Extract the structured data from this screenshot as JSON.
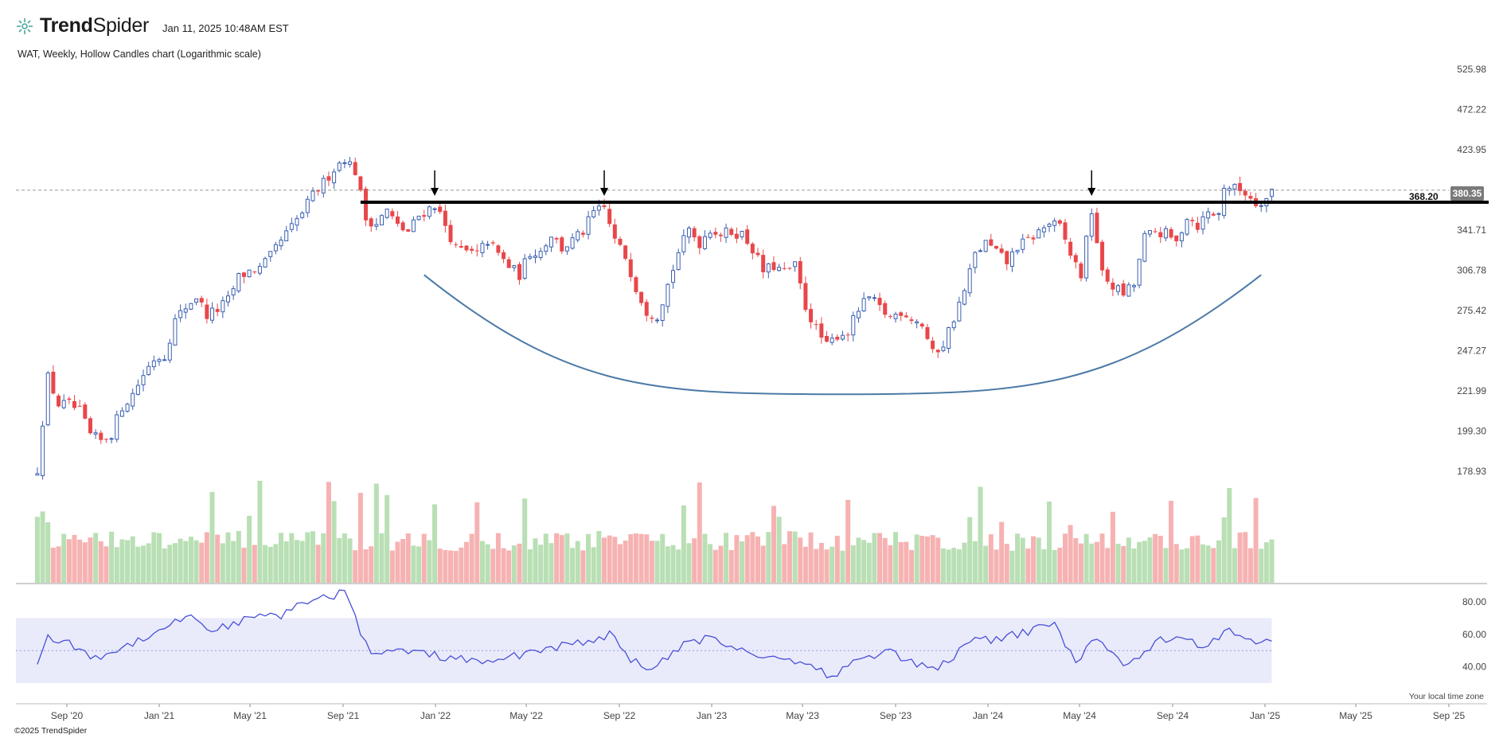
{
  "header": {
    "brand_bold": "Trend",
    "brand_light": "Spider",
    "logo_icon": "trendspider-logo-icon",
    "timestamp": "Jan 11, 2025 10:48AM EST",
    "subtitle": "WAT, Weekly, Hollow Candles chart (Logarithmic scale)"
  },
  "footer": {
    "copyright": "©2025 TrendSpider",
    "timezone": "Your local time zone"
  },
  "colors": {
    "up": "#3b5fb0",
    "down": "#e8474a",
    "vol_up": "#b9dfb4",
    "vol_down": "#f6b2b2",
    "rsi_line": "#4a4fd6",
    "rsi_band": "#e9ebfb",
    "cup_curve": "#4c7aa6",
    "resistance": "#000000"
  },
  "chart_data": [
    {
      "type": "candlestick",
      "ticker": "WAT",
      "interval": "Weekly",
      "style": "Hollow Candles",
      "scale": "log",
      "x_ticks": [
        "Sep '20",
        "Jan '21",
        "May '21",
        "Sep '21",
        "Jan '22",
        "May '22",
        "Sep '22",
        "Jan '23",
        "May '23",
        "Sep '23",
        "Jan '24",
        "May '24",
        "Sep '24",
        "Jan '25",
        "May '25",
        "Sep '25"
      ],
      "y_ticks": [
        178.93,
        199.3,
        221.99,
        247.27,
        275.42,
        306.78,
        341.71,
        380.35,
        423.95,
        472.22,
        525.98
      ],
      "y_tick_labels": [
        "178.93",
        "199.30",
        "221.99",
        "247.27",
        "275.42",
        "306.78",
        "341.71",
        "423.95",
        "472.22",
        "525.98"
      ],
      "last_price": "380.35",
      "resistance_level": 368.2,
      "resistance_label": "368.20",
      "anchor_closes": [
        [
          "2020-07-24",
          180
        ],
        [
          "2020-08-07",
          230
        ],
        [
          "2020-08-21",
          214
        ],
        [
          "2020-09-04",
          214
        ],
        [
          "2020-09-18",
          210
        ],
        [
          "2020-10-02",
          197
        ],
        [
          "2020-10-16",
          194
        ],
        [
          "2020-10-30",
          198
        ],
        [
          "2020-11-13",
          213
        ],
        [
          "2020-11-27",
          220
        ],
        [
          "2020-12-11",
          232
        ],
        [
          "2020-12-25",
          242
        ],
        [
          "2021-01-08",
          244
        ],
        [
          "2021-01-22",
          268
        ],
        [
          "2021-02-05",
          278
        ],
        [
          "2021-02-19",
          286
        ],
        [
          "2021-03-05",
          272
        ],
        [
          "2021-03-19",
          276
        ],
        [
          "2021-04-02",
          283
        ],
        [
          "2021-04-16",
          301
        ],
        [
          "2021-04-30",
          306
        ],
        [
          "2021-05-14",
          308
        ],
        [
          "2021-05-28",
          318
        ],
        [
          "2021-06-11",
          332
        ],
        [
          "2021-06-25",
          344
        ],
        [
          "2021-07-09",
          358
        ],
        [
          "2021-07-23",
          375
        ],
        [
          "2021-08-06",
          388
        ],
        [
          "2021-08-20",
          403
        ],
        [
          "2021-09-03",
          415
        ],
        [
          "2021-09-17",
          400
        ],
        [
          "2021-10-01",
          352
        ],
        [
          "2021-10-15",
          348
        ],
        [
          "2021-10-29",
          360
        ],
        [
          "2021-11-12",
          345
        ],
        [
          "2021-11-26",
          340
        ],
        [
          "2021-12-10",
          355
        ],
        [
          "2021-12-31",
          366
        ],
        [
          "2022-01-14",
          346
        ],
        [
          "2022-01-28",
          325
        ],
        [
          "2022-02-11",
          322
        ],
        [
          "2022-02-25",
          320
        ],
        [
          "2022-03-11",
          332
        ],
        [
          "2022-03-25",
          320
        ],
        [
          "2022-04-08",
          310
        ],
        [
          "2022-04-22",
          303
        ],
        [
          "2022-05-06",
          322
        ],
        [
          "2022-05-20",
          323
        ],
        [
          "2022-06-03",
          338
        ],
        [
          "2022-06-17",
          325
        ],
        [
          "2022-07-01",
          332
        ],
        [
          "2022-07-15",
          340
        ],
        [
          "2022-07-29",
          358
        ],
        [
          "2022-08-12",
          362
        ],
        [
          "2022-08-26",
          332
        ],
        [
          "2022-09-09",
          318
        ],
        [
          "2022-09-23",
          293
        ],
        [
          "2022-10-07",
          275
        ],
        [
          "2022-10-21",
          272
        ],
        [
          "2022-11-04",
          295
        ],
        [
          "2022-11-18",
          322
        ],
        [
          "2022-12-02",
          342
        ],
        [
          "2022-12-16",
          330
        ],
        [
          "2022-12-30",
          343
        ],
        [
          "2023-01-13",
          338
        ],
        [
          "2023-01-27",
          340
        ],
        [
          "2023-02-10",
          338
        ],
        [
          "2023-02-24",
          325
        ],
        [
          "2023-03-10",
          306
        ],
        [
          "2023-03-24",
          310
        ],
        [
          "2023-04-07",
          305
        ],
        [
          "2023-04-21",
          310
        ],
        [
          "2023-05-05",
          278
        ],
        [
          "2023-05-19",
          262
        ],
        [
          "2023-06-02",
          250
        ],
        [
          "2023-06-16",
          258
        ],
        [
          "2023-06-30",
          260
        ],
        [
          "2023-07-14",
          276
        ],
        [
          "2023-07-28",
          285
        ],
        [
          "2023-08-11",
          277
        ],
        [
          "2023-08-25",
          270
        ],
        [
          "2023-09-08",
          275
        ],
        [
          "2023-09-22",
          270
        ],
        [
          "2023-10-06",
          265
        ],
        [
          "2023-10-20",
          245
        ],
        [
          "2023-11-03",
          252
        ],
        [
          "2023-11-17",
          270
        ],
        [
          "2023-12-01",
          290
        ],
        [
          "2023-12-15",
          320
        ],
        [
          "2023-12-29",
          330
        ],
        [
          "2024-01-12",
          322
        ],
        [
          "2024-01-26",
          313
        ],
        [
          "2024-02-09",
          327
        ],
        [
          "2024-02-23",
          332
        ],
        [
          "2024-03-08",
          340
        ],
        [
          "2024-03-22",
          348
        ],
        [
          "2024-04-05",
          344
        ],
        [
          "2024-04-19",
          320
        ],
        [
          "2024-05-03",
          303
        ],
        [
          "2024-05-17",
          360
        ],
        [
          "2024-05-31",
          303
        ],
        [
          "2024-06-14",
          294
        ],
        [
          "2024-06-28",
          288
        ],
        [
          "2024-07-12",
          295
        ],
        [
          "2024-07-26",
          335
        ],
        [
          "2024-08-09",
          340
        ],
        [
          "2024-08-23",
          338
        ],
        [
          "2024-09-06",
          330
        ],
        [
          "2024-09-20",
          355
        ],
        [
          "2024-10-04",
          346
        ],
        [
          "2024-10-18",
          358
        ],
        [
          "2024-11-01",
          356
        ],
        [
          "2024-11-08",
          385
        ],
        [
          "2024-11-22",
          382
        ],
        [
          "2024-12-06",
          378
        ],
        [
          "2024-12-20",
          368
        ],
        [
          "2025-01-03",
          372
        ],
        [
          "2025-01-10",
          380
        ]
      ],
      "annotations": {
        "resistance_touch_arrows": [
          "2021-12-31",
          "2022-08-12",
          "2024-05-17"
        ],
        "cup_curve": {
          "start": [
            "2021-12-17",
            303
          ],
          "bottom": [
            "2023-06-16",
            220
          ],
          "end": [
            "2024-12-27",
            303
          ]
        }
      }
    },
    {
      "type": "bar",
      "name": "volume",
      "note": "relative weekly volume, colored by candle direction"
    },
    {
      "type": "line",
      "name": "RSI",
      "y_ticks": [
        40,
        60,
        80
      ],
      "y_tick_labels": [
        "40.00",
        "60.00",
        "80.00"
      ],
      "band": [
        30,
        70
      ],
      "midline": 50,
      "anchor_values": [
        [
          "2020-07-24",
          44
        ],
        [
          "2020-08-07",
          58
        ],
        [
          "2020-09-04",
          54
        ],
        [
          "2020-10-09",
          45
        ],
        [
          "2020-11-13",
          52
        ],
        [
          "2020-12-11",
          58
        ],
        [
          "2021-01-15",
          66
        ],
        [
          "2021-02-12",
          72
        ],
        [
          "2021-03-12",
          62
        ],
        [
          "2021-04-09",
          67
        ],
        [
          "2021-05-07",
          70
        ],
        [
          "2021-06-11",
          72
        ],
        [
          "2021-07-16",
          80
        ],
        [
          "2021-08-20",
          84
        ],
        [
          "2021-09-03",
          88
        ],
        [
          "2021-09-24",
          62
        ],
        [
          "2021-10-08",
          47
        ],
        [
          "2021-11-19",
          50
        ],
        [
          "2022-01-14",
          46
        ],
        [
          "2022-03-11",
          42
        ],
        [
          "2022-05-13",
          50
        ],
        [
          "2022-07-15",
          55
        ],
        [
          "2022-08-19",
          60
        ],
        [
          "2022-09-16",
          45
        ],
        [
          "2022-10-14",
          38
        ],
        [
          "2022-11-25",
          53
        ],
        [
          "2022-12-30",
          58
        ],
        [
          "2023-02-03",
          52
        ],
        [
          "2023-03-10",
          46
        ],
        [
          "2023-04-28",
          44
        ],
        [
          "2023-06-09",
          34
        ],
        [
          "2023-07-14",
          44
        ],
        [
          "2023-08-18",
          50
        ],
        [
          "2023-10-20",
          38
        ],
        [
          "2023-12-22",
          58
        ],
        [
          "2024-01-05",
          56
        ],
        [
          "2024-03-29",
          66
        ],
        [
          "2024-04-26",
          43
        ],
        [
          "2024-05-24",
          58
        ],
        [
          "2024-07-05",
          40
        ],
        [
          "2024-08-16",
          58
        ],
        [
          "2024-10-18",
          53
        ],
        [
          "2024-11-15",
          64
        ],
        [
          "2024-12-13",
          56
        ],
        [
          "2025-01-10",
          58
        ]
      ]
    }
  ]
}
